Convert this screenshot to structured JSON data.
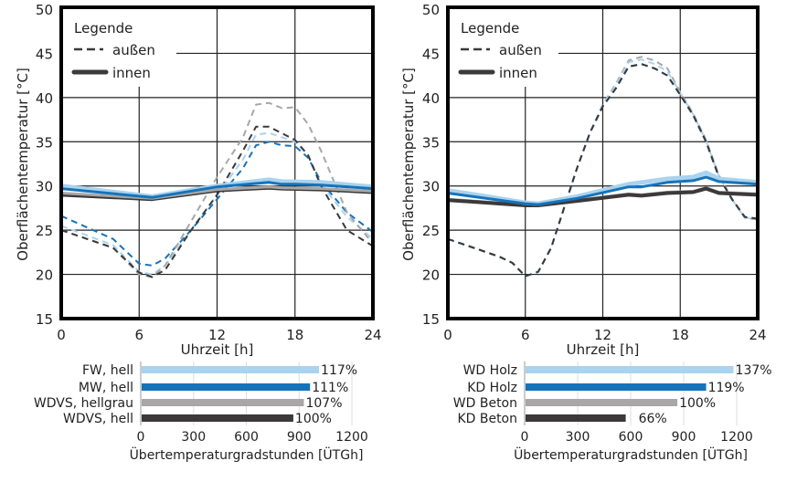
{
  "colors": {
    "light_blue": "#a9d3ef",
    "blue": "#1673b9",
    "gray": "#a8a6a6",
    "dark": "#3b3939"
  },
  "legend": {
    "title": "Legende",
    "outside": "außen",
    "inside": "innen"
  },
  "chart_data": [
    {
      "type": "line",
      "ylabel": "Oberflächentemperatur [°C]",
      "xlabel": "Uhrzeit [h]",
      "xlim": [
        0,
        24
      ],
      "ylim": [
        15,
        50
      ],
      "xticks": [
        0,
        6,
        12,
        18,
        24
      ],
      "yticks": [
        15,
        20,
        25,
        30,
        35,
        40,
        45,
        50
      ],
      "grid": true,
      "legend_position": "top-left",
      "series": [
        {
          "name": "FW, hell",
          "kind": "außen",
          "color": "light_blue",
          "x": [
            0,
            4,
            6,
            7,
            8,
            10,
            12,
            14,
            15,
            16,
            18,
            19,
            20,
            22,
            24
          ],
          "y": [
            25.5,
            23.3,
            20.3,
            20,
            21,
            25,
            29,
            33,
            35.8,
            36,
            35,
            33.5,
            30.2,
            26.5,
            24
          ]
        },
        {
          "name": "MW, hell",
          "kind": "außen",
          "color": "blue",
          "x": [
            0,
            4,
            6,
            7,
            8,
            10,
            12,
            14,
            15,
            16,
            17,
            18,
            19,
            20,
            22,
            24
          ],
          "y": [
            26.6,
            24,
            21.2,
            21,
            21.8,
            25,
            28.5,
            32,
            34.6,
            35,
            34.6,
            34.5,
            33.2,
            30.5,
            27,
            24.8
          ]
        },
        {
          "name": "WDVS, hellgrau",
          "kind": "außen",
          "color": "gray",
          "x": [
            0,
            4,
            6,
            7,
            8,
            10,
            12,
            14,
            15,
            16,
            17,
            18,
            19,
            20,
            22,
            24
          ],
          "y": [
            25,
            23,
            20,
            19.7,
            21,
            26,
            31,
            35.5,
            39.2,
            39.4,
            38.8,
            38.9,
            37,
            34,
            27,
            23.5
          ]
        },
        {
          "name": "WDVS, hell",
          "kind": "außen",
          "color": "dark",
          "x": [
            0,
            2,
            4,
            6,
            7,
            8,
            10,
            12,
            14,
            15,
            16,
            18,
            19,
            20,
            22,
            24
          ],
          "y": [
            25,
            24,
            23,
            20.2,
            19.7,
            20.5,
            25,
            29,
            34,
            36.7,
            36.7,
            35.2,
            33.5,
            30,
            25,
            23.2
          ]
        },
        {
          "name": "WDVS, hell",
          "kind": "innen",
          "color": "dark",
          "x": [
            0,
            7,
            12,
            16,
            17,
            20,
            24
          ],
          "y": [
            29,
            28.5,
            29.5,
            29.8,
            29.7,
            29.6,
            29.3
          ]
        },
        {
          "name": "WDVS, hellgrau",
          "kind": "innen",
          "color": "gray",
          "x": [
            0,
            7,
            12,
            16,
            17,
            20,
            24
          ],
          "y": [
            29.2,
            28.6,
            29.6,
            29.9,
            29.8,
            29.7,
            29.4
          ]
        },
        {
          "name": "FW, hell",
          "kind": "innen",
          "color": "light_blue",
          "x": [
            0,
            7,
            12,
            16,
            17,
            20,
            24
          ],
          "y": [
            30,
            28.8,
            30,
            30.7,
            30.5,
            30.4,
            29.9
          ]
        },
        {
          "name": "MW, hell",
          "kind": "innen",
          "color": "blue",
          "x": [
            0,
            7,
            12,
            16,
            17,
            18,
            20,
            24
          ],
          "y": [
            29.7,
            28.7,
            29.9,
            30.4,
            30.2,
            30.2,
            30.1,
            29.7
          ]
        }
      ]
    },
    {
      "type": "line",
      "ylabel": "Oberflächentemperatur [°C]",
      "xlabel": "Uhrzeit [h]",
      "xlim": [
        0,
        24
      ],
      "ylim": [
        15,
        50
      ],
      "xticks": [
        0,
        6,
        12,
        18,
        24
      ],
      "yticks": [
        15,
        20,
        25,
        30,
        35,
        40,
        45,
        50
      ],
      "grid": true,
      "legend_position": "top-left",
      "series": [
        {
          "name": "WD Beton",
          "kind": "außen",
          "color": "gray",
          "x": [
            0,
            2,
            4,
            5,
            6,
            7,
            8,
            9,
            10,
            11,
            12,
            13,
            14,
            15,
            16,
            17,
            18,
            19,
            20,
            21,
            22,
            23,
            24
          ],
          "y": [
            24,
            23,
            22,
            21.3,
            19.8,
            20.3,
            23,
            27.5,
            32,
            36,
            39.2,
            41.5,
            44.2,
            44.6,
            44.2,
            43.3,
            40.6,
            38.2,
            35.2,
            31.2,
            28.6,
            26.4,
            26.2
          ]
        },
        {
          "name": "WD Holz",
          "kind": "außen",
          "color": "light_blue",
          "x": [
            0,
            2,
            4,
            5,
            6,
            7,
            8,
            9,
            10,
            11,
            12,
            13,
            14,
            15,
            16,
            17,
            18,
            19,
            20,
            21,
            22,
            23,
            24
          ],
          "y": [
            24,
            23,
            22,
            21.3,
            19.8,
            20.3,
            23,
            27.5,
            32,
            36,
            39.1,
            41.3,
            44,
            44.3,
            43.8,
            43,
            40.5,
            38.1,
            35.1,
            31.1,
            28.5,
            26.4,
            26.3
          ]
        },
        {
          "name": "KD Holz",
          "kind": "außen",
          "color": "blue",
          "x": [
            0,
            2,
            4,
            5,
            6,
            7,
            8,
            9,
            10,
            11,
            12,
            13,
            14,
            15,
            16,
            17,
            18,
            19,
            20,
            21,
            22,
            23,
            24
          ],
          "y": [
            24,
            23,
            22,
            21.3,
            19.8,
            20.3,
            23,
            27.5,
            32,
            36,
            39,
            41,
            43.5,
            43.8,
            43.3,
            42.5,
            40.3,
            38,
            35,
            31,
            28.5,
            26.5,
            26.3
          ]
        },
        {
          "name": "KD Beton",
          "kind": "außen",
          "color": "dark",
          "x": [
            0,
            2,
            4,
            5,
            6,
            7,
            8,
            9,
            10,
            11,
            12,
            13,
            14,
            15,
            16,
            17,
            18,
            19,
            20,
            21,
            22,
            23,
            24
          ],
          "y": [
            24,
            23,
            22,
            21.3,
            19.8,
            20.3,
            23,
            27.5,
            32,
            36,
            39,
            41,
            43.5,
            43.8,
            43.3,
            42.5,
            40.3,
            38,
            35,
            31,
            28.5,
            26.5,
            26.3
          ]
        },
        {
          "name": "WD Beton",
          "kind": "innen",
          "color": "gray",
          "x": [
            0,
            6,
            7,
            10,
            14,
            15,
            17,
            19,
            20,
            21,
            24
          ],
          "y": [
            28.5,
            27.9,
            27.9,
            28.4,
            29.1,
            29,
            29.3,
            29.4,
            29.8,
            29.3,
            29.1
          ]
        },
        {
          "name": "KD Beton",
          "kind": "innen",
          "color": "dark",
          "x": [
            0,
            6,
            7,
            10,
            14,
            15,
            17,
            19,
            20,
            21,
            24
          ],
          "y": [
            28.4,
            27.8,
            27.8,
            28.3,
            29,
            28.9,
            29.2,
            29.3,
            29.7,
            29.2,
            29
          ]
        },
        {
          "name": "WD Holz",
          "kind": "innen",
          "color": "light_blue",
          "x": [
            0,
            6,
            7,
            10,
            14,
            17,
            19,
            20,
            21,
            24
          ],
          "y": [
            29.5,
            28.1,
            28,
            28.8,
            30.2,
            30.8,
            31,
            31.5,
            30.8,
            30.4
          ]
        },
        {
          "name": "KD Holz",
          "kind": "innen",
          "color": "blue",
          "x": [
            0,
            6,
            7,
            10,
            14,
            15,
            17,
            19,
            20,
            21,
            24
          ],
          "y": [
            29.2,
            28,
            27.9,
            28.6,
            29.9,
            29.9,
            30.4,
            30.6,
            31,
            30.5,
            30.2
          ]
        }
      ]
    },
    {
      "type": "bar",
      "orientation": "horizontal",
      "xlabel": "Übertemperaturgradstunden [ÜTGh]",
      "xlim": [
        0,
        1200
      ],
      "xticks": [
        0,
        300,
        600,
        900,
        1200
      ],
      "categories": [
        "FW, hell",
        "MW, hell",
        "WDVS, hellgrau",
        "WDVS, hell"
      ],
      "values": [
        1008,
        957,
        922,
        862
      ],
      "data_labels": [
        "117%",
        "111%",
        "107%",
        "100%"
      ],
      "colors": [
        "light_blue",
        "blue",
        "gray",
        "dark"
      ]
    },
    {
      "type": "bar",
      "orientation": "horizontal",
      "xlabel": "Übertemperaturgradstunden [ÜTGh]",
      "xlim": [
        0,
        1200
      ],
      "xticks": [
        0,
        300,
        600,
        900,
        1200
      ],
      "categories": [
        "WD Holz",
        "KD Holz",
        "WD Beton",
        "KD Beton"
      ],
      "values": [
        1177,
        1022,
        859,
        567
      ],
      "data_labels": [
        "137%",
        "119%",
        "100%",
        "66%"
      ],
      "colors": [
        "light_blue",
        "blue",
        "gray",
        "dark"
      ]
    }
  ]
}
